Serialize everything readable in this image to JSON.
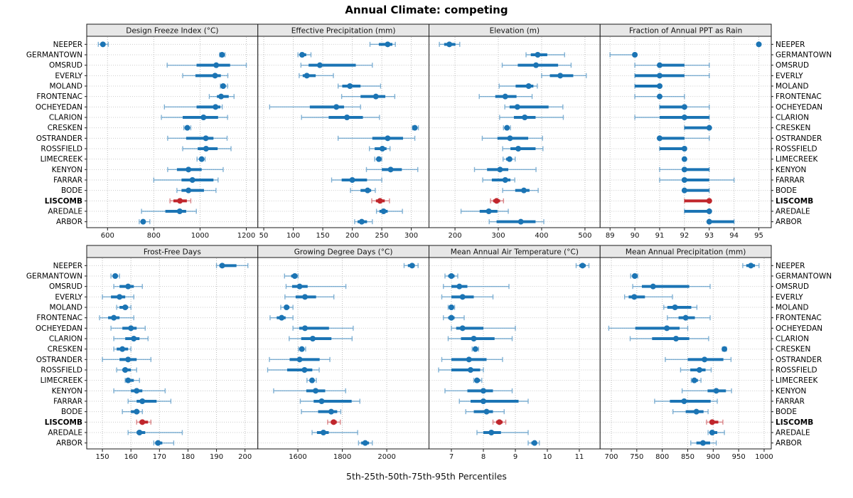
{
  "title": "Annual Climate: competing",
  "caption": "5th-25th-50th-75th-95th Percentiles",
  "percentile_labels": [
    "5th",
    "25th",
    "50th",
    "75th",
    "95th"
  ],
  "highlight_station": "LISCOMB",
  "colors": {
    "blue": "#1b74b4",
    "red": "#c0262c",
    "header_bg": "#e7e7e7",
    "frame": "#1a1a1a",
    "grid": "#bdbdbd",
    "row_grid": "#cccccc"
  },
  "stations": [
    "NEEPER",
    "GERMANTOWN",
    "OMSRUD",
    "EVERLY",
    "MOLAND",
    "FRONTENAC",
    "OCHEYEDAN",
    "CLARION",
    "CRESKEN",
    "OSTRANDER",
    "ROSSFIELD",
    "LIMECREEK",
    "KENYON",
    "FARRAR",
    "BODE",
    "LISCOMB",
    "AREDALE",
    "ARBOR"
  ],
  "chart_data": {
    "type": "trellis-percentile-dot-whisker",
    "note": "Each row value array is [p5,p25,p50,p75,p95] per station, station order as in stations[]",
    "panels": [
      {
        "title": "Design Freeze Index (°C)",
        "ticks": [
          600,
          800,
          1000,
          1200
        ],
        "domain": [
          510,
          1250
        ],
        "values": [
          [
            560,
            572,
            580,
            591,
            603
          ],
          [
            1085,
            1091,
            1095,
            1100,
            1108
          ],
          [
            858,
            985,
            1070,
            1130,
            1200
          ],
          [
            925,
            980,
            1065,
            1090,
            1120
          ],
          [
            1088,
            1094,
            1100,
            1110,
            1119
          ],
          [
            1040,
            1073,
            1091,
            1124,
            1147
          ],
          [
            846,
            985,
            1067,
            1088,
            1096
          ],
          [
            833,
            925,
            1015,
            1078,
            1119
          ],
          [
            930,
            937,
            945,
            952,
            960
          ],
          [
            860,
            940,
            1025,
            1058,
            1117
          ],
          [
            925,
            990,
            1026,
            1076,
            1134
          ],
          [
            987,
            997,
            1007,
            1015,
            1022
          ],
          [
            860,
            900,
            950,
            1007,
            1100
          ],
          [
            800,
            920,
            967,
            1058,
            1078
          ],
          [
            900,
            920,
            950,
            1017,
            1069
          ],
          [
            870,
            885,
            913,
            943,
            960
          ],
          [
            747,
            850,
            912,
            940,
            984
          ],
          [
            737,
            746,
            754,
            764,
            783
          ]
        ]
      },
      {
        "title": "Effective Precipitation (mm)",
        "ticks": [
          50,
          100,
          150,
          200,
          250,
          300
        ],
        "domain": [
          40,
          330
        ],
        "values": [
          [
            230,
            245,
            260,
            268,
            273
          ],
          [
            108,
            112,
            115,
            122,
            130
          ],
          [
            113,
            126,
            145,
            206,
            234
          ],
          [
            110,
            116,
            123,
            138,
            168
          ],
          [
            176,
            183,
            196,
            214,
            248
          ],
          [
            182,
            214,
            240,
            256,
            272
          ],
          [
            60,
            128,
            173,
            186,
            214
          ],
          [
            114,
            160,
            191,
            218,
            246
          ],
          [
            302,
            304,
            306,
            309,
            312
          ],
          [
            176,
            234,
            260,
            286,
            306
          ],
          [
            229,
            238,
            251,
            258,
            264
          ],
          [
            238,
            241,
            245,
            248,
            250
          ],
          [
            224,
            250,
            265,
            284,
            311
          ],
          [
            165,
            182,
            200,
            225,
            250
          ],
          [
            197,
            214,
            226,
            232,
            239
          ],
          [
            233,
            240,
            247,
            255,
            263
          ],
          [
            241,
            246,
            253,
            260,
            285
          ],
          [
            204,
            209,
            216,
            225,
            234
          ]
        ]
      },
      {
        "title": "Elevation (m)",
        "ticks": [
          200,
          300,
          400,
          500
        ],
        "domain": [
          140,
          535
        ],
        "values": [
          [
            164,
            175,
            187,
            201,
            211
          ],
          [
            364,
            375,
            391,
            413,
            453
          ],
          [
            309,
            345,
            387,
            438,
            468
          ],
          [
            400,
            419,
            443,
            473,
            503
          ],
          [
            302,
            340,
            370,
            381,
            390
          ],
          [
            256,
            293,
            316,
            342,
            378
          ],
          [
            315,
            326,
            344,
            416,
            449
          ],
          [
            303,
            336,
            361,
            386,
            450
          ],
          [
            312,
            316,
            320,
            324,
            328
          ],
          [
            263,
            298,
            327,
            369,
            402
          ],
          [
            310,
            328,
            346,
            386,
            403
          ],
          [
            311,
            318,
            326,
            332,
            339
          ],
          [
            245,
            274,
            304,
            323,
            387
          ],
          [
            264,
            285,
            316,
            328,
            338
          ],
          [
            310,
            339,
            359,
            372,
            392
          ],
          [
            282,
            288,
            296,
            304,
            312
          ],
          [
            214,
            257,
            278,
            298,
            323
          ],
          [
            279,
            296,
            352,
            386,
            405
          ]
        ]
      },
      {
        "title": "Fraction of Annual PPT as Rain",
        "ticks": [
          89,
          90,
          91,
          92,
          93,
          94,
          95
        ],
        "domain": [
          88.6,
          95.5
        ],
        "values": [
          [
            95,
            95,
            95,
            95,
            95
          ],
          [
            89,
            90,
            90,
            90,
            90
          ],
          [
            90,
            91,
            91,
            92,
            93
          ],
          [
            90,
            90,
            91,
            92,
            93
          ],
          [
            90,
            90,
            91,
            91,
            91
          ],
          [
            90,
            91,
            91,
            91,
            92
          ],
          [
            91,
            91,
            92,
            92,
            93
          ],
          [
            90,
            91,
            92,
            93,
            93
          ],
          [
            92,
            92,
            93,
            93,
            93
          ],
          [
            91,
            91,
            91,
            92,
            93
          ],
          [
            91,
            91,
            92,
            92,
            92
          ],
          [
            92,
            92,
            92,
            92,
            92
          ],
          [
            91,
            92,
            92,
            93,
            93
          ],
          [
            91,
            92,
            92,
            93,
            94
          ],
          [
            92,
            92,
            92,
            93,
            93
          ],
          [
            92,
            92,
            93,
            93,
            93
          ],
          [
            92,
            92,
            93,
            93,
            93
          ],
          [
            93,
            93,
            93,
            94,
            94
          ]
        ]
      },
      {
        "title": "Frost-Free Days",
        "ticks": [
          150,
          160,
          170,
          180,
          190,
          200
        ],
        "domain": [
          144.5,
          204.5
        ],
        "values": [
          [
            190,
            191,
            192,
            197,
            201
          ],
          [
            153,
            154,
            154.5,
            155,
            156
          ],
          [
            154,
            156,
            159,
            161,
            164
          ],
          [
            150,
            153,
            156,
            158,
            161
          ],
          [
            155,
            156,
            158,
            159,
            160
          ],
          [
            149,
            152,
            154,
            156,
            161
          ],
          [
            153,
            157,
            160,
            162,
            165
          ],
          [
            154,
            158,
            161,
            163,
            166
          ],
          [
            154,
            155,
            157,
            159,
            160
          ],
          [
            150,
            156,
            159,
            162,
            167
          ],
          [
            155,
            157,
            158,
            160,
            162
          ],
          [
            158,
            158.5,
            159,
            161,
            163
          ],
          [
            154,
            160,
            162,
            164,
            172
          ],
          [
            159,
            162,
            164,
            169,
            174
          ],
          [
            157,
            160,
            162,
            163,
            164
          ],
          [
            162,
            163,
            164,
            166,
            167
          ],
          [
            159,
            162,
            163,
            165,
            178
          ],
          [
            168,
            168.5,
            169.5,
            171,
            175
          ]
        ]
      },
      {
        "title": "Growing Degree Days (°C)",
        "ticks": [
          1600,
          1800,
          2000
        ],
        "domain": [
          1420,
          2190
        ],
        "values": [
          [
            2078,
            2095,
            2114,
            2126,
            2141
          ],
          [
            1540,
            1570,
            1586,
            1595,
            1601
          ],
          [
            1547,
            1574,
            1608,
            1644,
            1816
          ],
          [
            1542,
            1590,
            1632,
            1682,
            1762
          ],
          [
            1523,
            1540,
            1549,
            1562,
            1578
          ],
          [
            1475,
            1505,
            1527,
            1545,
            1578
          ],
          [
            1578,
            1606,
            1632,
            1740,
            1849
          ],
          [
            1561,
            1615,
            1667,
            1751,
            1844
          ],
          [
            1603,
            1610,
            1618,
            1628,
            1635
          ],
          [
            1472,
            1563,
            1608,
            1698,
            1744
          ],
          [
            1464,
            1552,
            1630,
            1665,
            1696
          ],
          [
            1641,
            1652,
            1664,
            1672,
            1683
          ],
          [
            1491,
            1638,
            1680,
            1723,
            1815
          ],
          [
            1611,
            1671,
            1707,
            1842,
            1879
          ],
          [
            1616,
            1691,
            1750,
            1777,
            1793
          ],
          [
            1734,
            1748,
            1761,
            1775,
            1791
          ],
          [
            1664,
            1686,
            1715,
            1739,
            1869
          ],
          [
            1873,
            1885,
            1903,
            1920,
            1935
          ]
        ]
      },
      {
        "title": "Mean Annual Air Temperature (°C)",
        "ticks": [
          7,
          8,
          9,
          10,
          11
        ],
        "domain": [
          6.3,
          11.65
        ],
        "values": [
          [
            10.9,
            11.0,
            11.1,
            11.2,
            11.3
          ],
          [
            6.8,
            6.9,
            7.0,
            7.1,
            7.2
          ],
          [
            6.75,
            7.0,
            7.25,
            7.5,
            8.8
          ],
          [
            6.7,
            7.0,
            7.35,
            7.7,
            8.3
          ],
          [
            6.9,
            6.95,
            7.0,
            7.05,
            7.1
          ],
          [
            6.75,
            6.9,
            7.0,
            7.1,
            7.4
          ],
          [
            7.0,
            7.15,
            7.35,
            8.0,
            9.0
          ],
          [
            6.9,
            7.3,
            7.7,
            8.35,
            8.9
          ],
          [
            7.65,
            7.7,
            7.75,
            7.8,
            7.85
          ],
          [
            6.7,
            7.0,
            7.55,
            8.1,
            8.6
          ],
          [
            6.6,
            7.0,
            7.6,
            7.9,
            8.0
          ],
          [
            7.7,
            7.75,
            7.8,
            7.9,
            7.95
          ],
          [
            6.8,
            7.5,
            8.0,
            8.3,
            8.9
          ],
          [
            7.25,
            7.6,
            8.0,
            9.1,
            9.4
          ],
          [
            7.45,
            7.7,
            8.1,
            8.3,
            8.65
          ],
          [
            8.3,
            8.4,
            8.5,
            8.6,
            8.7
          ],
          [
            7.8,
            8.0,
            8.25,
            8.55,
            9.4
          ],
          [
            9.4,
            9.5,
            9.6,
            9.65,
            9.75
          ]
        ]
      },
      {
        "title": "Mean Annual Precipitation (mm)",
        "ticks": [
          700,
          750,
          800,
          850,
          900,
          950,
          1000
        ],
        "domain": [
          678,
          1014
        ],
        "values": [
          [
            958,
            965,
            974,
            982,
            990
          ],
          [
            738,
            742,
            746,
            749,
            752
          ],
          [
            742,
            760,
            782,
            853,
            894
          ],
          [
            726,
            734,
            745,
            766,
            820
          ],
          [
            803,
            810,
            825,
            857,
            868
          ],
          [
            810,
            832,
            846,
            864,
            894
          ],
          [
            695,
            747,
            809,
            834,
            850
          ],
          [
            737,
            780,
            827,
            853,
            891
          ],
          [
            918,
            920,
            922,
            924,
            926
          ],
          [
            806,
            850,
            883,
            920,
            935
          ],
          [
            836,
            855,
            873,
            885,
            896
          ],
          [
            857,
            860,
            863,
            870,
            876
          ],
          [
            839,
            889,
            906,
            925,
            936
          ],
          [
            785,
            815,
            843,
            895,
            908
          ],
          [
            821,
            846,
            867,
            881,
            890
          ],
          [
            887,
            893,
            898,
            910,
            919
          ],
          [
            890,
            893,
            898,
            908,
            922
          ],
          [
            856,
            867,
            880,
            894,
            906
          ]
        ]
      }
    ]
  }
}
